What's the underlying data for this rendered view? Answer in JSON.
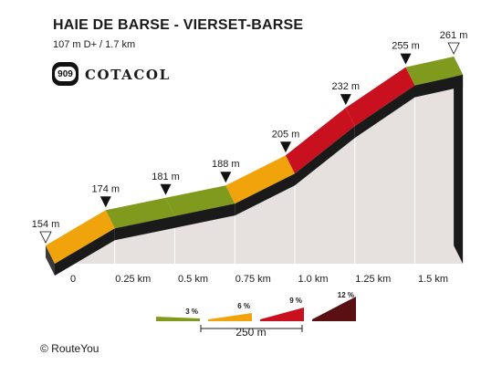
{
  "header": {
    "title": "HAIE DE BARSE - VIERSET-BARSE",
    "subtitle": "107 m D+ / 1.7 km",
    "badge": "909",
    "brand": "COTACOL"
  },
  "footer": {
    "credit": "© RouteYou"
  },
  "chart_data": {
    "type": "area",
    "xlabel": "",
    "ylabel": "",
    "x_ticks": [
      {
        "value": 0,
        "label": "0"
      },
      {
        "value": 0.25,
        "label": "0.25 km"
      },
      {
        "value": 0.5,
        "label": "0.5 km"
      },
      {
        "value": 0.75,
        "label": "0.75 km"
      },
      {
        "value": 1.0,
        "label": "1.0 km"
      },
      {
        "value": 1.25,
        "label": "1.25 km"
      },
      {
        "value": 1.5,
        "label": "1.5 km"
      }
    ],
    "xlim": [
      0,
      1.7
    ],
    "ylim": [
      154,
      261
    ],
    "points": [
      {
        "x": 0,
        "y": 154,
        "label": "154 m",
        "marker": "open"
      },
      {
        "x": 0.25,
        "y": 174,
        "label": "174 m",
        "marker": "filled"
      },
      {
        "x": 0.5,
        "y": 181,
        "label": "181 m",
        "marker": "filled"
      },
      {
        "x": 0.75,
        "y": 188,
        "label": "188 m",
        "marker": "filled"
      },
      {
        "x": 1.0,
        "y": 205,
        "label": "205 m",
        "marker": "filled"
      },
      {
        "x": 1.25,
        "y": 232,
        "label": "232 m",
        "marker": "filled"
      },
      {
        "x": 1.5,
        "y": 255,
        "label": "255 m",
        "marker": "filled"
      },
      {
        "x": 1.7,
        "y": 261,
        "label": "261 m",
        "marker": "open"
      }
    ],
    "segment_colors": [
      "#f0a30a",
      "#7f9a1c",
      "#7f9a1c",
      "#f0a30a",
      "#c8101e",
      "#c8101e",
      "#7f9a1c"
    ],
    "legend": {
      "items": [
        {
          "label": "3 %",
          "color": "#7f9a1c"
        },
        {
          "label": "6 %",
          "color": "#f0a30a"
        },
        {
          "label": "9 %",
          "color": "#c8101e"
        },
        {
          "label": "12 %",
          "color": "#5a1012"
        }
      ],
      "scale_label": "250 m"
    }
  }
}
